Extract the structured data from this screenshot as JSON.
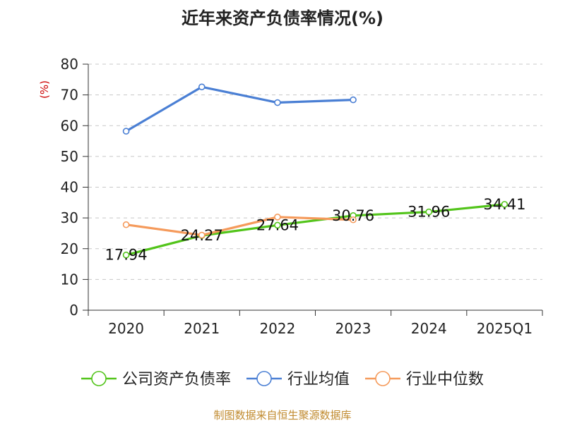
{
  "chart_data": {
    "type": "line",
    "title": "近年来资产负债率情况(%)",
    "ylabel": "(%)",
    "xlabel": "",
    "categories": [
      "2020",
      "2021",
      "2022",
      "2023",
      "2024",
      "2025Q1"
    ],
    "ylim": [
      0,
      80
    ],
    "yticks": [
      "0",
      "10",
      "20",
      "30",
      "40",
      "50",
      "60",
      "70",
      "80"
    ],
    "grid": "horizontal dashed",
    "legend_position": "bottom",
    "series": [
      {
        "name": "公司资产负债率",
        "color": "#52c41a",
        "values": [
          17.94,
          24.27,
          27.64,
          30.76,
          31.96,
          34.41
        ],
        "labels": [
          "17.94",
          "24.27",
          "27.64",
          "30.76",
          "31.96",
          "34.41"
        ]
      },
      {
        "name": "行业均值",
        "color": "#4a7fd4",
        "values": [
          58.2,
          72.6,
          67.5,
          68.4,
          null,
          null
        ]
      },
      {
        "name": "行业中位数",
        "color": "#f59a5b",
        "values": [
          27.8,
          24.4,
          30.3,
          29.4,
          null,
          null
        ]
      }
    ]
  },
  "source": "制图数据来自恒生聚源数据库"
}
